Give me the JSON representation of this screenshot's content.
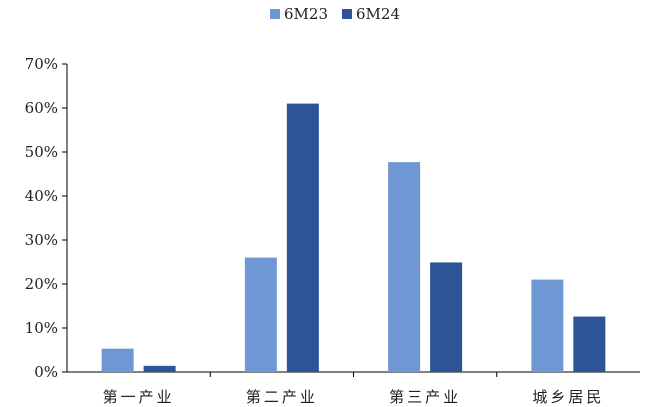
{
  "chart_data": {
    "type": "bar",
    "categories": [
      "第一产业",
      "第二产业",
      "第三产业",
      "城乡居民"
    ],
    "series": [
      {
        "name": "6M23",
        "values": [
          5.3,
          26.0,
          47.7,
          21.0
        ],
        "color": "#6f97d4"
      },
      {
        "name": "6M24",
        "values": [
          1.4,
          61.0,
          24.9,
          12.6
        ],
        "color": "#2d5497"
      }
    ],
    "ylim": [
      0,
      70
    ],
    "yticks": [
      "0%",
      "10%",
      "20%",
      "30%",
      "40%",
      "50%",
      "60%",
      "70%"
    ],
    "ytick_values": [
      0,
      10,
      20,
      30,
      40,
      50,
      60,
      70
    ],
    "legend": "top-center",
    "grid": false
  }
}
